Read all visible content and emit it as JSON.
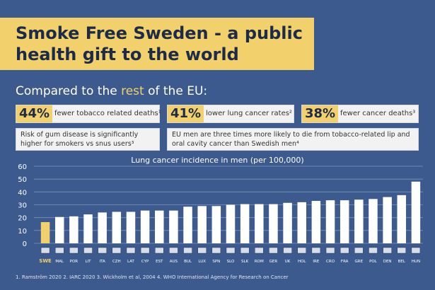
{
  "header": {
    "title_line1": "Smoke Free Sweden - a public",
    "title_line2": "health gift to the world"
  },
  "comparison": {
    "prefix": "Compared to the ",
    "highlight": "rest",
    "suffix": " of the EU:"
  },
  "stats": [
    {
      "percent": "44%",
      "text": "fewer tobacco related deaths¹"
    },
    {
      "percent": "41%",
      "text": "lower lung cancer rates²"
    },
    {
      "percent": "38%",
      "text": "fewer cancer deaths³"
    }
  ],
  "notes": [
    {
      "line1": "Risk of gum disease is significantly",
      "line2": "higher for smokers vs snus users³"
    },
    {
      "line1": "EU men are three times more likely to die from tobacco-related lip and",
      "line2": "oral cavity cancer than Swedish men⁴"
    }
  ],
  "footnote": "1.  Ramström 2020    2. IARC 2020    3. Wickholm et al, 2004    4. WHO International Agency for Research on Cancer",
  "chart_data": {
    "type": "bar",
    "title": "Lung cancer incidence in men (per 100,000)",
    "categories": [
      "SWE",
      "MAL",
      "POR",
      "LIT",
      "ITA",
      "CZH",
      "LAT",
      "CYP",
      "EST",
      "AUS",
      "BUL",
      "LUX",
      "SPN",
      "SLO",
      "SLK",
      "ROM",
      "GER",
      "UK",
      "HOL",
      "IRE",
      "CRO",
      "FRA",
      "GRE",
      "POL",
      "DEN",
      "BEL",
      "HUN"
    ],
    "values": [
      16.5,
      20.5,
      21,
      22.5,
      24,
      24.5,
      24.5,
      25.5,
      25.5,
      25.5,
      28.5,
      29,
      29,
      30,
      30.5,
      30.5,
      30.5,
      31.5,
      32,
      33,
      33.5,
      33.5,
      34,
      34.5,
      36,
      37.5,
      48
    ],
    "ylim": [
      0,
      60
    ],
    "yticks": [
      0,
      10,
      20,
      30,
      40,
      50,
      60
    ],
    "grid": true,
    "colors": {
      "highlight": "#f2d06b",
      "bar": "#ffffff",
      "grid": "#7f94ba"
    }
  }
}
